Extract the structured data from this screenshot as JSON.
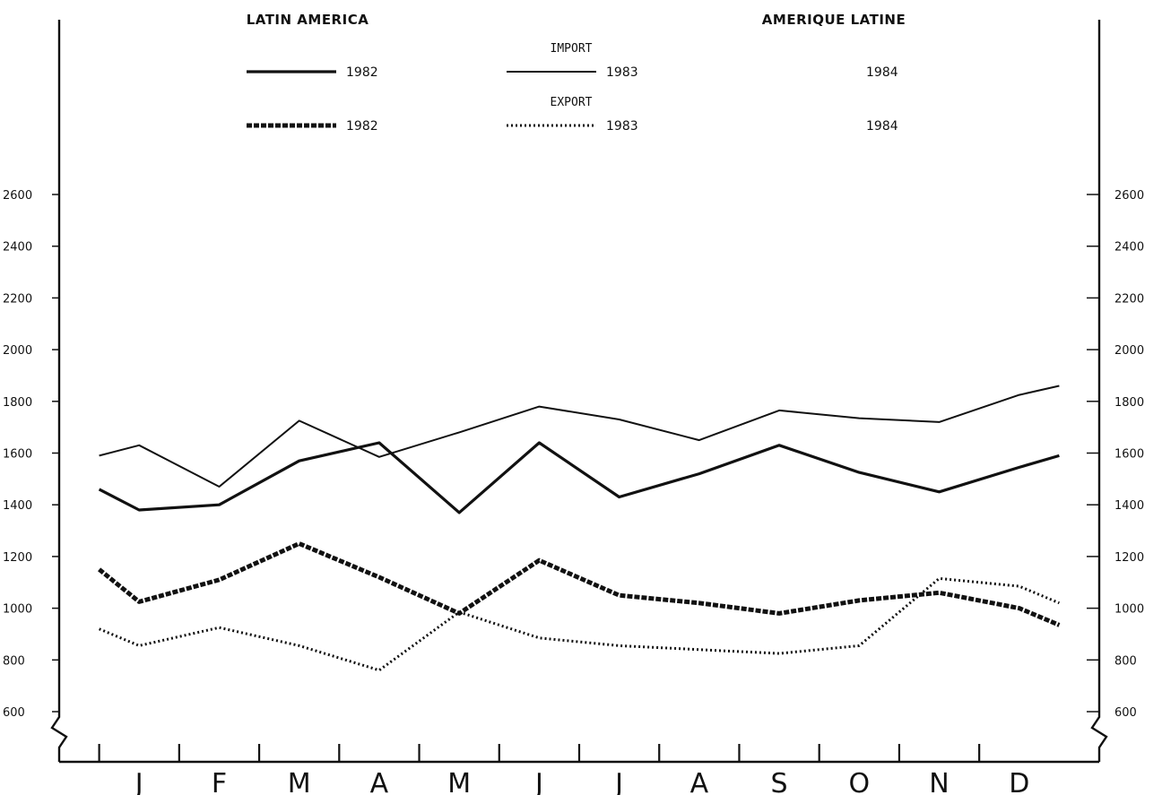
{
  "chart_data": {
    "type": "line",
    "title_left": "LATIN AMERICA",
    "title_right": "AMERIQUE LATINE",
    "legend": {
      "import_label": "IMPORT",
      "export_label": "EXPORT",
      "import_years": [
        "1982",
        "1983",
        "1984"
      ],
      "export_years": [
        "1982",
        "1983",
        "1984"
      ]
    },
    "categories": [
      "J",
      "F",
      "M",
      "A",
      "M",
      "J",
      "J",
      "A",
      "S",
      "O",
      "N",
      "D"
    ],
    "y_ticks": [
      600,
      800,
      1000,
      1200,
      1400,
      1600,
      1800,
      2000,
      2200,
      2400,
      2600
    ],
    "ylim": [
      500,
      2650
    ],
    "axis_break": true,
    "series": [
      {
        "name": "1982",
        "group": "IMPORT",
        "style": "solid-thick",
        "points": [
          [
            0.5,
            1460
          ],
          [
            1.0,
            1380
          ],
          [
            2.0,
            1400
          ],
          [
            3.0,
            1570
          ],
          [
            4.0,
            1640
          ],
          [
            5.0,
            1370
          ],
          [
            6.0,
            1640
          ],
          [
            7.0,
            1430
          ],
          [
            8.0,
            1520
          ],
          [
            9.0,
            1630
          ],
          [
            10.0,
            1525
          ],
          [
            11.0,
            1450
          ],
          [
            12.0,
            1545
          ],
          [
            12.5,
            1590
          ]
        ]
      },
      {
        "name": "1983",
        "group": "IMPORT",
        "style": "solid-thin",
        "points": [
          [
            0.5,
            1590
          ],
          [
            1.0,
            1630
          ],
          [
            2.0,
            1470
          ],
          [
            3.0,
            1725
          ],
          [
            4.0,
            1585
          ],
          [
            5.0,
            1680
          ],
          [
            6.0,
            1780
          ],
          [
            7.0,
            1730
          ],
          [
            8.0,
            1650
          ],
          [
            9.0,
            1765
          ],
          [
            10.0,
            1735
          ],
          [
            11.0,
            1720
          ],
          [
            12.0,
            1825
          ],
          [
            12.5,
            1860
          ]
        ]
      },
      {
        "name": "1982",
        "group": "EXPORT",
        "style": "dashed-thick",
        "points": [
          [
            0.5,
            1150
          ],
          [
            1.0,
            1025
          ],
          [
            2.0,
            1110
          ],
          [
            3.0,
            1250
          ],
          [
            4.0,
            1120
          ],
          [
            5.0,
            980
          ],
          [
            6.0,
            1185
          ],
          [
            7.0,
            1050
          ],
          [
            8.0,
            1020
          ],
          [
            9.0,
            980
          ],
          [
            10.0,
            1030
          ],
          [
            11.0,
            1060
          ],
          [
            12.0,
            1000
          ],
          [
            12.5,
            935
          ]
        ]
      },
      {
        "name": "1983",
        "group": "EXPORT",
        "style": "dotted",
        "points": [
          [
            0.5,
            920
          ],
          [
            1.0,
            855
          ],
          [
            2.0,
            925
          ],
          [
            3.0,
            855
          ],
          [
            4.0,
            760
          ],
          [
            5.0,
            985
          ],
          [
            6.0,
            885
          ],
          [
            7.0,
            855
          ],
          [
            8.0,
            840
          ],
          [
            9.0,
            825
          ],
          [
            10.0,
            855
          ],
          [
            11.0,
            1115
          ],
          [
            12.0,
            1085
          ],
          [
            12.5,
            1020
          ]
        ]
      }
    ],
    "grid": false,
    "legend_position": "top"
  }
}
